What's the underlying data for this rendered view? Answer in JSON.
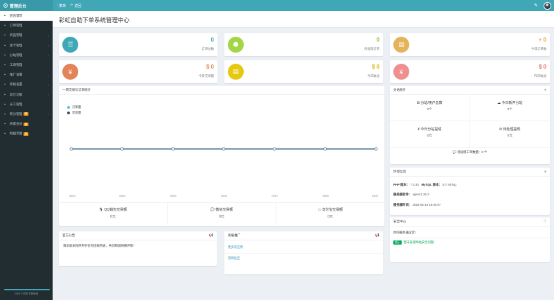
{
  "topbar": {
    "brand": "管理后台",
    "menu_label": "菜单",
    "back_label": "返回"
  },
  "sidebar": {
    "items": [
      {
        "label": "后台首页",
        "icon": "home-icon",
        "active": true
      },
      {
        "label": "订单管理",
        "icon": "list-icon",
        "chevron": false
      },
      {
        "label": "商品管理",
        "icon": "cart-icon",
        "chevron": true
      },
      {
        "label": "发卡管理",
        "icon": "card-icon",
        "chevron": true
      },
      {
        "label": "分站管理",
        "icon": "sitemap-icon",
        "chevron": true
      },
      {
        "label": "工单管理",
        "icon": "ticket-icon",
        "chevron": false
      },
      {
        "label": "推广设置",
        "icon": "share-icon",
        "chevron": true
      },
      {
        "label": "系统设置",
        "icon": "gear-icon",
        "chevron": true
      },
      {
        "label": "其它功能",
        "icon": "puzzle-icon",
        "chevron": true
      },
      {
        "label": "员工管理",
        "icon": "user-icon",
        "chevron": false
      },
      {
        "label": "积分管理",
        "icon": "coin-icon",
        "badge": "新",
        "chevron": true
      },
      {
        "label": "商家会员",
        "icon": "member-icon",
        "badge": "新",
        "chevron": false
      },
      {
        "label": "网盘页面",
        "icon": "cloud-icon",
        "badge": "新",
        "chevron": false
      }
    ],
    "footer": "2025 © 彩虹下单系统"
  },
  "page": {
    "title": "彩虹自助下单系统管理中心"
  },
  "stats": [
    {
      "value": "0",
      "label": "订单总数",
      "color": "#3fa7b6",
      "value_color": "#3fa7b6",
      "icon": "list-icon",
      "glyph": "☰"
    },
    {
      "value": "0",
      "label": "待处理订单",
      "color": "#a3d645",
      "value_color": "#8cc63f",
      "icon": "cube-icon",
      "glyph": "⬢"
    },
    {
      "value": "+ 0",
      "label": "今日订单数",
      "color": "#e5b35a",
      "value_color": "#e5a83a",
      "icon": "briefcase-icon",
      "glyph": "▤"
    },
    {
      "value": "$ 0",
      "label": "今日交易额",
      "color": "#e3835a",
      "value_color": "#e3835a",
      "icon": "yen-icon",
      "glyph": "¥"
    },
    {
      "value": "$ 0",
      "label": "今日收益",
      "color": "#e6c90f",
      "value_color": "#d4b70a",
      "icon": "briefcase-icon",
      "glyph": "▤"
    },
    {
      "value": "$ 0",
      "label": "昨日收益",
      "color": "#ef8f8f",
      "value_color": "#e96b6b",
      "icon": "yen-icon",
      "glyph": "¥"
    }
  ],
  "chart_panel": {
    "title": "一周交易与订单统计"
  },
  "chart_data": {
    "type": "line",
    "x": [
      "0503",
      "0504",
      "0505",
      "0506",
      "0507",
      "0508",
      "0509"
    ],
    "series": [
      {
        "name": "订单量",
        "values": [
          0,
          0,
          0,
          0,
          0,
          0,
          0
        ],
        "color": "#5bc0de"
      },
      {
        "name": "交易量",
        "values": [
          0,
          0,
          0,
          0,
          0,
          0,
          0
        ],
        "color": "#3c4f6b"
      }
    ],
    "title": "",
    "xlabel": "",
    "ylabel": "",
    "legend": "top-left"
  },
  "payments": [
    {
      "label": "QQ钱包交易额",
      "amount": "0元",
      "icon": "qq-icon",
      "glyph": "🐧"
    },
    {
      "label": "微信交易额",
      "amount": "0元",
      "icon": "wechat-icon",
      "glyph": "💬"
    },
    {
      "label": "支付宝交易额",
      "amount": "0元",
      "icon": "alipay-icon",
      "glyph": "▭"
    }
  ],
  "substation": {
    "title": "分站统计",
    "cells": [
      {
        "label": "分站/用户总数",
        "value": "2个",
        "icon": "sitemap-icon",
        "glyph": "⊞"
      },
      {
        "label": "今日新开分站",
        "value": "0个",
        "icon": "cloud-icon",
        "glyph": "☁"
      },
      {
        "label": "今日分站提成",
        "value": "0元",
        "icon": "yen-icon",
        "glyph": "¥"
      },
      {
        "label": "待处理提现",
        "value": "0元",
        "icon": "inbox-icon",
        "glyph": "✉"
      }
    ],
    "pending": "待处理工单数量：0 个"
  },
  "env": {
    "title": "环境信息",
    "php_label": "PHP 版本：",
    "php_value": "7.4.33",
    "mysql_label": "MySQL 版本：",
    "mysql_value": "5.7.44-log",
    "server_label": "服务器软件：",
    "server_value": "nginx/1.26.3",
    "time_label": "服务器时间：",
    "time_value": "2025-05-10 16:00:07"
  },
  "announce": {
    "title": "官方公告",
    "text": "请没收本程序用于任何违规用途，共创和谐网络环境！"
  },
  "release": {
    "title": "发展推广",
    "links": [
      "更多云应用",
      "官网社区"
    ]
  },
  "security": {
    "title": "安全中心",
    "ok_text": "你的服务器正常!",
    "tag": "提示",
    "tip": "暂未发现网站安全问题"
  }
}
